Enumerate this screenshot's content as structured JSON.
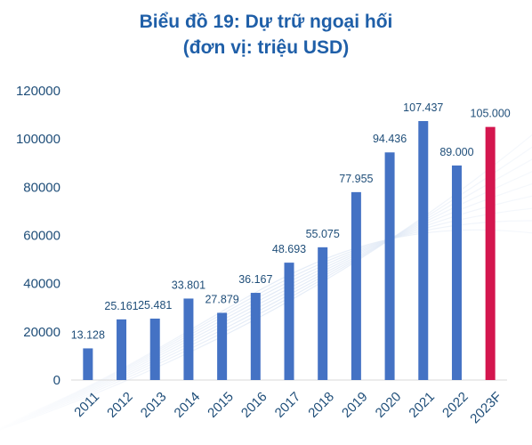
{
  "chart_data": {
    "type": "bar",
    "title": "Biểu đồ 19: Dự trữ ngoại hối",
    "subtitle": "(đơn vị: triệu USD)",
    "categories": [
      "2011",
      "2012",
      "2013",
      "2014",
      "2015",
      "2016",
      "2017",
      "2018",
      "2019",
      "2020",
      "2021",
      "2022",
      "2023F"
    ],
    "values": [
      13128,
      25161,
      25481,
      33801,
      27879,
      36167,
      48693,
      55075,
      77955,
      94436,
      107437,
      89000,
      105000
    ],
    "value_labels": [
      "13.128",
      "25.161",
      "25.481",
      "33.801",
      "27.879",
      "36.167",
      "48.693",
      "55.075",
      "77.955",
      "94.436",
      "107.437",
      "89.000",
      "105.000"
    ],
    "y_ticks": [
      "0",
      "20000",
      "40000",
      "60000",
      "80000",
      "100000",
      "120000"
    ],
    "ylim": [
      0,
      120000
    ],
    "grid": false,
    "legend": "none",
    "colors": {
      "bar": "#4472c4",
      "forecast_bar": "#d4164e",
      "text": "#1f4e79",
      "title": "#1f5fa8"
    }
  }
}
